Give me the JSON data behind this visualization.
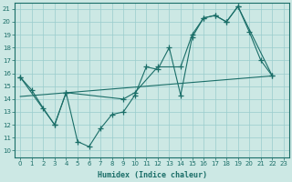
{
  "xlabel": "Humidex (Indice chaleur)",
  "bg_color": "#cce8e4",
  "line_color": "#1a6e68",
  "grid_color": "#99cccc",
  "xlim": [
    -0.5,
    23.5
  ],
  "ylim": [
    9.5,
    21.5
  ],
  "xticks": [
    0,
    1,
    2,
    3,
    4,
    5,
    6,
    7,
    8,
    9,
    10,
    11,
    12,
    13,
    14,
    15,
    16,
    17,
    18,
    19,
    20,
    21,
    22,
    23
  ],
  "yticks": [
    10,
    11,
    12,
    13,
    14,
    15,
    16,
    17,
    18,
    19,
    20,
    21
  ],
  "line1_x": [
    0,
    1,
    2,
    3,
    4,
    5,
    6,
    7,
    8,
    9,
    10,
    11,
    12,
    13,
    14,
    15,
    16,
    17,
    18,
    19,
    20,
    21,
    22
  ],
  "line1_y": [
    15.7,
    14.7,
    13.3,
    12.0,
    14.5,
    10.7,
    10.3,
    11.7,
    12.8,
    13.0,
    14.3,
    16.5,
    16.3,
    18.0,
    14.3,
    18.8,
    20.3,
    20.5,
    20.0,
    21.2,
    19.2,
    17.0,
    15.8
  ],
  "line2_x": [
    0,
    3,
    4,
    9,
    10,
    12,
    14,
    15,
    16,
    17,
    18,
    19,
    22
  ],
  "line2_y": [
    15.7,
    12.0,
    14.5,
    14.0,
    14.5,
    16.5,
    16.5,
    19.0,
    20.3,
    20.5,
    20.0,
    21.2,
    15.8
  ],
  "line3_x": [
    0,
    22
  ],
  "line3_y": [
    14.2,
    15.8
  ]
}
